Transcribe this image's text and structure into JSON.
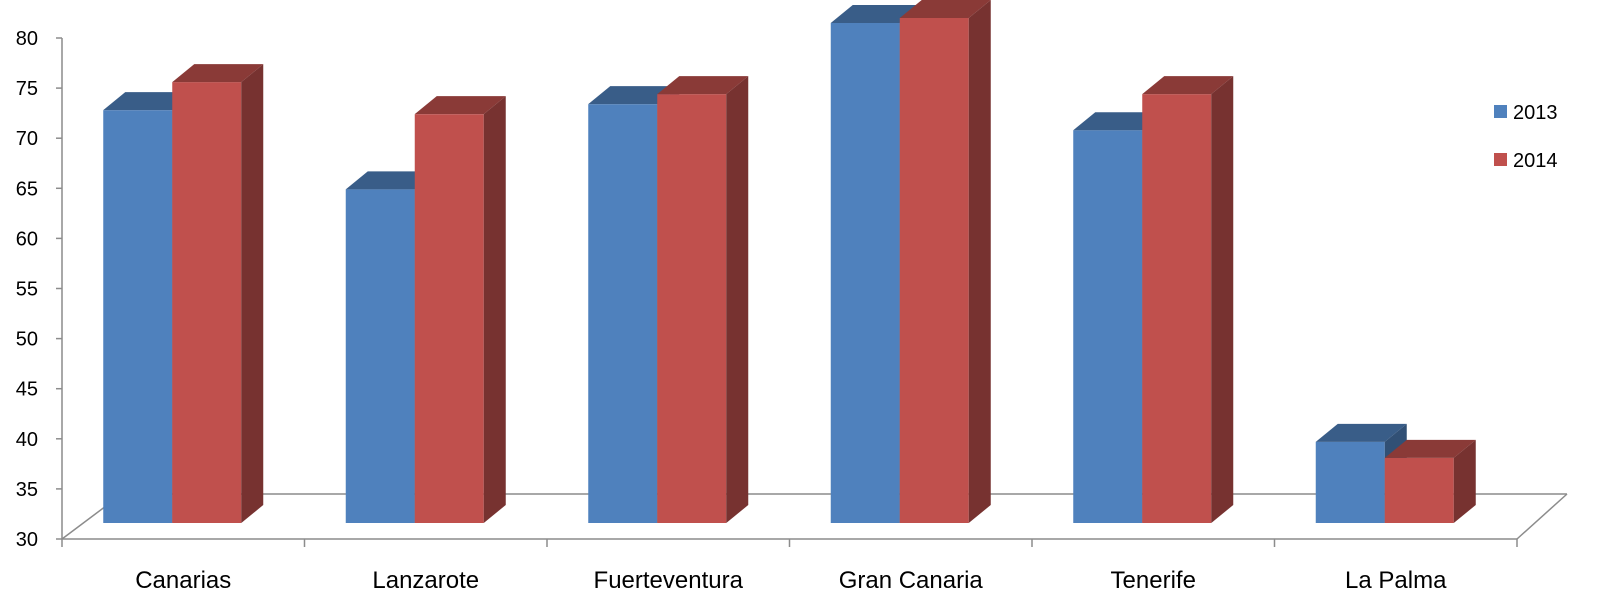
{
  "chart_data": {
    "type": "bar",
    "title": "",
    "xlabel": "",
    "ylabel": "",
    "ylim": [
      30,
      80
    ],
    "yticks": [
      30,
      35,
      40,
      45,
      50,
      55,
      60,
      65,
      70,
      75,
      80
    ],
    "grid": false,
    "three_d": true,
    "legend_position": "right",
    "categories": [
      "Canarias",
      "Lanzarote",
      "Fuerteventura",
      "Gran Canaria",
      "Tenerife",
      "La Palma"
    ],
    "series": [
      {
        "name": "2013",
        "color": "#4F81BD",
        "values": [
          71.2,
          63.3,
          71.8,
          79.9,
          69.2,
          38.1
        ]
      },
      {
        "name": "2014",
        "color": "#C0504D",
        "values": [
          74.0,
          70.8,
          72.8,
          80.4,
          72.8,
          36.5
        ]
      }
    ]
  }
}
